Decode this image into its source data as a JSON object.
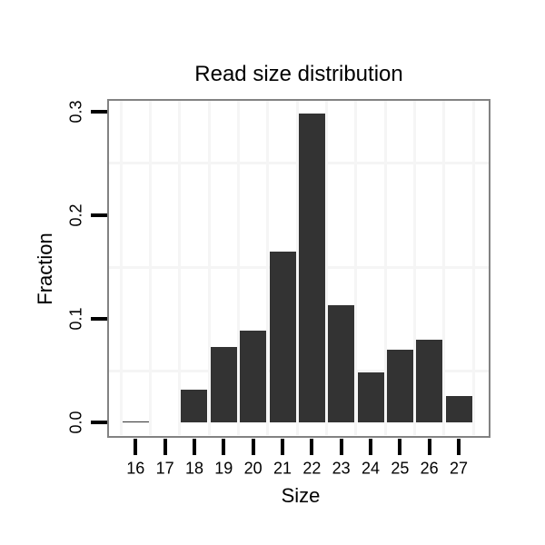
{
  "chart_data": {
    "type": "bar",
    "title": "Read size distribution",
    "xlabel": "Size",
    "ylabel": "Fraction",
    "categories": [
      "16",
      "17",
      "18",
      "19",
      "20",
      "21",
      "22",
      "23",
      "24",
      "25",
      "26",
      "27"
    ],
    "values": [
      0.001,
      0,
      0.032,
      0.073,
      0.089,
      0.165,
      0.298,
      0.113,
      0.048,
      0.07,
      0.08,
      0.026
    ],
    "ylim": [
      0,
      0.315
    ],
    "ytick_values": [
      0,
      0.1,
      0.2,
      0.3
    ],
    "ytick_labels": [
      "0.0",
      "0.1",
      "0.2",
      "0.3"
    ],
    "grid": "minor gridlines at 0.05 fraction steps and at category boundaries",
    "legend_position": "none",
    "colors": {
      "bar": "#333333",
      "panel_border": "#828282",
      "gridline": "#f5f5f5",
      "tick": "#000000",
      "text": "#000000",
      "background": "#ffffff"
    }
  }
}
